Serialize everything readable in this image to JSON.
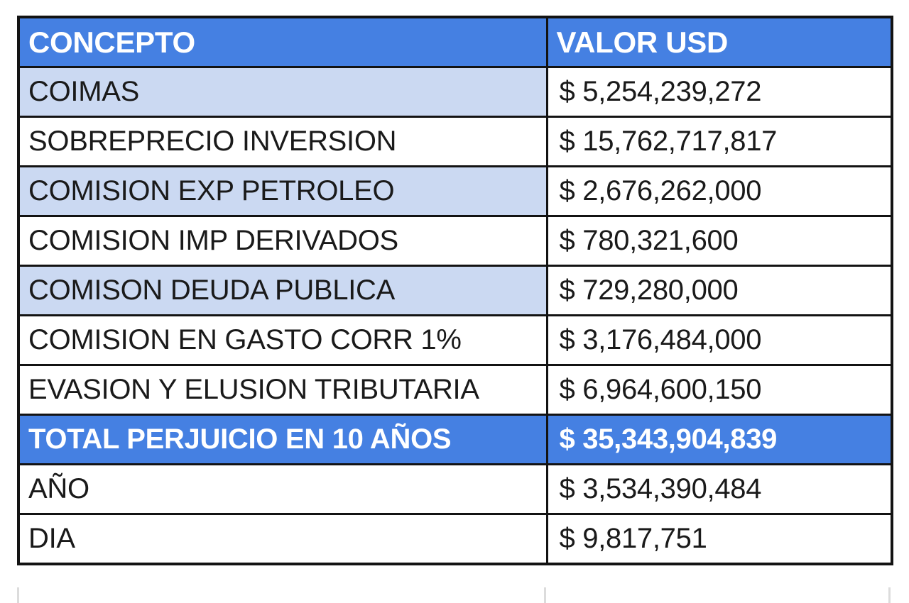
{
  "colors": {
    "header_blue": "#4580E2",
    "row_light_blue": "#CBD9F2",
    "total_blue": "#4580E2",
    "border_black": "#131313",
    "text_black": "#1A1A1A",
    "header_text_white": "#FFFFFF",
    "partial_grid_gray": "#DCDCDC"
  },
  "table": {
    "columns": [
      {
        "label": "CONCEPTO"
      },
      {
        "label": "VALOR USD"
      }
    ],
    "rows": [
      {
        "concept": "COIMAS",
        "value": "$ 5,254,239,272",
        "highlight": "light-blue"
      },
      {
        "concept": "SOBREPRECIO INVERSION",
        "value": "$ 15,762,717,817",
        "highlight": "none"
      },
      {
        "concept": "COMISION EXP PETROLEO",
        "value": "$ 2,676,262,000",
        "highlight": "light-blue"
      },
      {
        "concept": "COMISION IMP DERIVADOS",
        "value": "$ 780,321,600",
        "highlight": "none"
      },
      {
        "concept": "COMISON DEUDA PUBLICA",
        "value": "$ 729,280,000",
        "highlight": "light-blue"
      },
      {
        "concept": "COMISION EN GASTO CORR 1%",
        "value": "$ 3,176,484,000",
        "highlight": "none"
      },
      {
        "concept": "EVASION Y ELUSION TRIBUTARIA",
        "value": "$ 6,964,600,150",
        "highlight": "none"
      },
      {
        "concept": "TOTAL PERJUICIO EN 10 AÑOS",
        "value": "$ 35,343,904,839",
        "highlight": "total"
      },
      {
        "concept": "AÑO",
        "value": "$ 3,534,390,484",
        "highlight": "none"
      },
      {
        "concept": "DIA",
        "value": "$ 9,817,751",
        "highlight": "none"
      }
    ]
  }
}
